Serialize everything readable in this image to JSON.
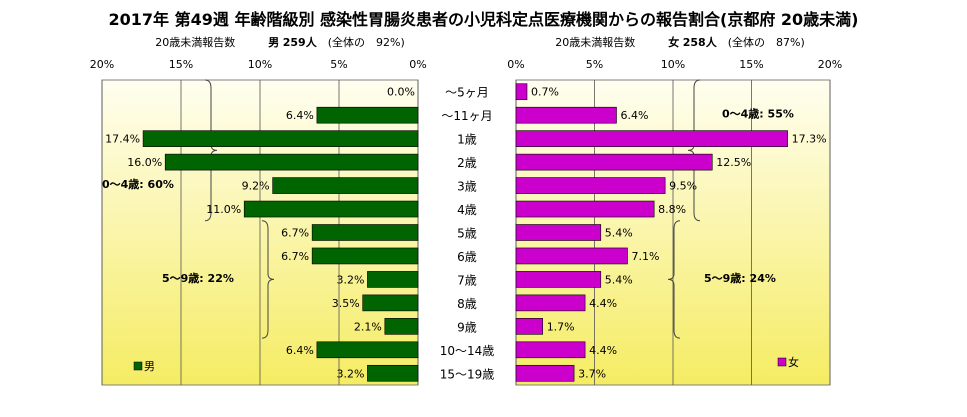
{
  "title": "2017年 第49週 年齢階級別 感染性胃腸炎患者の小児科定点医療機関からの報告割合(京都府 20歳未満)",
  "male_summary": {
    "caption": "20歳未満報告数",
    "sex": "男",
    "count": "259人",
    "share": "(全体の　92%)"
  },
  "female_summary": {
    "caption": "20歳未満報告数",
    "sex": "女",
    "count": "258人",
    "share": "(全体の　87%)"
  },
  "colors": {
    "male_bar": "#006400",
    "female_bar": "#cc00cc",
    "plot_top": "#fffef0",
    "plot_bottom": "#f5ec63"
  },
  "chart_data": [
    {
      "type": "bar",
      "orientation": "horizontal",
      "direction": "right-to-left",
      "categories": [
        "～5ヶ月",
        "～11ヶ月",
        "1歳",
        "2歳",
        "3歳",
        "4歳",
        "5歳",
        "6歳",
        "7歳",
        "8歳",
        "9歳",
        "10～14歳",
        "15～19歳"
      ],
      "series": [
        {
          "name": "男",
          "values": [
            0.0,
            6.4,
            17.4,
            16.0,
            9.2,
            11.0,
            6.7,
            6.7,
            3.2,
            3.5,
            2.1,
            6.4,
            3.2
          ],
          "labels": [
            "0.0%",
            "6.4%",
            "17.4%",
            "16.0%",
            "9.2%",
            "11.0%",
            "6.7%",
            "6.7%",
            "3.2%",
            "3.5%",
            "2.1%",
            "6.4%",
            "3.2%"
          ]
        }
      ],
      "xlim": [
        0,
        20
      ],
      "xticks": [
        "20%",
        "15%",
        "10%",
        "5%",
        "0%"
      ],
      "legend_position": "bottom-left",
      "brace_annotations": [
        "0～4歳: 60%",
        "5～9歳: 22%"
      ]
    },
    {
      "type": "bar",
      "orientation": "horizontal",
      "direction": "left-to-right",
      "categories": [
        "～5ヶ月",
        "～11ヶ月",
        "1歳",
        "2歳",
        "3歳",
        "4歳",
        "5歳",
        "6歳",
        "7歳",
        "8歳",
        "9歳",
        "10～14歳",
        "15～19歳"
      ],
      "series": [
        {
          "name": "女",
          "values": [
            0.7,
            6.4,
            17.3,
            12.5,
            9.5,
            8.8,
            5.4,
            7.1,
            5.4,
            4.4,
            1.7,
            4.4,
            3.7
          ],
          "labels": [
            "0.7%",
            "6.4%",
            "17.3%",
            "12.5%",
            "9.5%",
            "8.8%",
            "5.4%",
            "7.1%",
            "5.4%",
            "4.4%",
            "1.7%",
            "4.4%",
            "3.7%"
          ]
        }
      ],
      "xlim": [
        0,
        20
      ],
      "xticks": [
        "0%",
        "5%",
        "10%",
        "15%",
        "20%"
      ],
      "legend_position": "bottom-right",
      "brace_annotations": [
        "0～4歳: 55%",
        "5～9歳: 24%"
      ]
    }
  ]
}
